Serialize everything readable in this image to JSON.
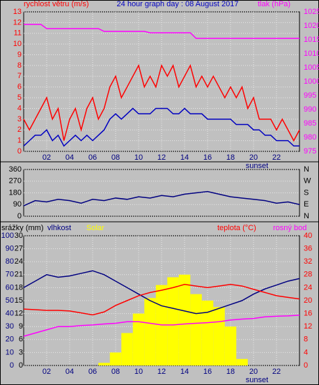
{
  "chart_data": [
    {
      "type": "line",
      "title": "24 hour graph day : 08 August 2017",
      "y_label": "rychlost větru (m/s)",
      "y2_label": "tlak (hPa)",
      "title_color": "#0000c0",
      "ytick_color": "#ff0000",
      "y2tick_color": "#ff00ff",
      "grid": true,
      "xlim": [
        0,
        24
      ],
      "xticks": [
        {
          "value": 2,
          "label": "02"
        },
        {
          "value": 4,
          "label": "04"
        },
        {
          "value": 6,
          "label": "06"
        },
        {
          "value": 8,
          "label": "08"
        },
        {
          "value": 10,
          "label": "10"
        },
        {
          "value": 12,
          "label": "12"
        },
        {
          "value": 14,
          "label": "14"
        },
        {
          "value": 16,
          "label": "16"
        },
        {
          "value": 18,
          "label": "18"
        },
        {
          "value": 20,
          "label": "20"
        },
        {
          "value": 22,
          "label": "22"
        }
      ],
      "annotation": {
        "text": "sunset",
        "x": 20.3
      },
      "ylim": [
        0,
        13
      ],
      "yticks": [
        0,
        1,
        2,
        3,
        4,
        5,
        6,
        7,
        8,
        9,
        10,
        11,
        12,
        13
      ],
      "y2lim": [
        975,
        1025
      ],
      "y2ticks": [
        975,
        980,
        985,
        990,
        995,
        1000,
        1005,
        1010,
        1015,
        1020,
        1025
      ],
      "x": [
        0,
        0.5,
        1,
        1.5,
        2,
        2.5,
        3,
        3.5,
        4,
        4.5,
        5,
        5.5,
        6,
        6.5,
        7,
        7.5,
        8,
        8.5,
        9,
        9.5,
        10,
        10.5,
        11,
        11.5,
        12,
        12.5,
        13,
        13.5,
        14,
        14.5,
        15,
        15.5,
        16,
        16.5,
        17,
        17.5,
        18,
        18.5,
        19,
        19.5,
        20,
        20.5,
        21,
        21.5,
        22,
        22.5,
        23,
        23.5,
        24
      ],
      "series": [
        {
          "color": "#ff0000",
          "values": [
            3,
            2,
            3,
            4,
            5,
            3,
            4,
            1,
            3,
            4,
            2,
            4,
            5,
            3,
            4,
            6,
            7,
            5,
            6,
            7,
            8,
            6,
            7,
            6,
            8,
            7,
            8,
            6,
            7,
            8,
            6,
            7,
            6,
            7,
            6,
            5,
            6,
            5,
            6,
            4,
            5,
            3,
            3,
            3,
            2,
            3,
            2,
            1,
            2
          ]
        },
        {
          "color": "#0000c0",
          "values": [
            0.5,
            1,
            1.5,
            1.5,
            2,
            1,
            1.5,
            0.5,
            1,
            1.5,
            1,
            1.5,
            1,
            1.5,
            2,
            3,
            3.5,
            3,
            3.5,
            4,
            3.5,
            3.5,
            3.5,
            4,
            4,
            4,
            3.5,
            3.5,
            4,
            3.5,
            3.5,
            3.5,
            3,
            3,
            3,
            3,
            3,
            2.5,
            2.5,
            2.5,
            2,
            2,
            1.5,
            1.5,
            1,
            1,
            1,
            0.5,
            0.5
          ]
        },
        {
          "color": "#ff00ff",
          "axis": "y2",
          "values": [
            1020.5,
            1020.5,
            1020.5,
            1020.5,
            1019,
            1019,
            1019,
            1019,
            1019,
            1019,
            1019,
            1019,
            1019,
            1019,
            1018,
            1018,
            1018,
            1018,
            1018,
            1018,
            1018,
            1018,
            1017.5,
            1017.5,
            1017.5,
            1017.5,
            1017.5,
            1017.5,
            1017.5,
            1017.5,
            1015.5,
            1015.5,
            1015.5,
            1015.5,
            1015.5,
            1015.5,
            1015.5,
            1015.5,
            1015.5,
            1015.5,
            1015.5,
            1015.5,
            1015.5,
            1015.5,
            1015.5,
            1015.5,
            1015.5,
            1015.5,
            1015.5
          ]
        }
      ]
    },
    {
      "type": "line",
      "ytick_color": "#000000",
      "y2tick_color": "#000000",
      "grid": true,
      "xlim": [
        0,
        24
      ],
      "ylim": [
        0,
        360
      ],
      "yticks": [
        0,
        90,
        180,
        270,
        360
      ],
      "y2lim": [
        0,
        360
      ],
      "y2ticks": [
        {
          "value": 0,
          "label": "N"
        },
        {
          "value": 90,
          "label": "E"
        },
        {
          "value": 180,
          "label": "S"
        },
        {
          "value": 270,
          "label": "W"
        },
        {
          "value": 360,
          "label": "N"
        }
      ],
      "x": [
        0,
        1,
        2,
        3,
        4,
        5,
        6,
        7,
        8,
        9,
        10,
        11,
        12,
        13,
        14,
        15,
        16,
        17,
        18,
        19,
        20,
        21,
        22,
        23,
        24
      ],
      "series": [
        {
          "color": "#000080",
          "values": [
            80,
            120,
            110,
            130,
            120,
            100,
            130,
            120,
            140,
            130,
            150,
            140,
            160,
            150,
            170,
            180,
            190,
            170,
            150,
            140,
            130,
            120,
            100,
            110,
            90
          ]
        }
      ]
    },
    {
      "type": "line",
      "y3_label": "srážky (mm)",
      "ytick_color": "#000080",
      "y3tick_color": "#000000",
      "y2tick_color": "#ff0000",
      "grid": true,
      "xlim": [
        0,
        24
      ],
      "xticks": [
        {
          "value": 2,
          "label": "02"
        },
        {
          "value": 4,
          "label": "04"
        },
        {
          "value": 6,
          "label": "06"
        },
        {
          "value": 8,
          "label": "08"
        },
        {
          "value": 10,
          "label": "10"
        },
        {
          "value": 12,
          "label": "12"
        },
        {
          "value": 14,
          "label": "14"
        },
        {
          "value": 16,
          "label": "16"
        },
        {
          "value": 18,
          "label": "18"
        },
        {
          "value": 20,
          "label": "20"
        },
        {
          "value": 22,
          "label": "22"
        }
      ],
      "annotation": {
        "text": "sunset",
        "x": 20.3
      },
      "ylim": [
        0,
        100
      ],
      "yticks": [
        0,
        10,
        20,
        30,
        40,
        50,
        60,
        70,
        80,
        90,
        100
      ],
      "y3lim": [
        0,
        30
      ],
      "y3ticks": [
        0,
        3,
        6,
        9,
        12,
        15,
        18,
        21,
        24,
        27,
        30
      ],
      "y2lim": [
        0,
        40
      ],
      "y2ticks": [
        0,
        4,
        8,
        12,
        16,
        20,
        24,
        28,
        32,
        36,
        40
      ],
      "x": [
        0,
        1,
        2,
        3,
        4,
        5,
        6,
        7,
        8,
        9,
        10,
        11,
        12,
        13,
        14,
        15,
        16,
        17,
        18,
        19,
        20,
        21,
        22,
        23,
        24
      ],
      "series": [
        {
          "name": "vlhkost",
          "color": "#000080",
          "values": [
            60,
            65,
            70,
            68,
            69,
            71,
            73,
            70,
            65,
            60,
            55,
            50,
            46,
            44,
            42,
            40,
            41,
            44,
            47,
            50,
            55,
            59,
            62,
            65,
            67
          ]
        },
        {
          "name": "Solar",
          "color": "#ffff00",
          "kind": "bars",
          "values": [
            0,
            0,
            0,
            0,
            0,
            0,
            0,
            2,
            10,
            25,
            40,
            52,
            62,
            68,
            70,
            55,
            50,
            45,
            30,
            5,
            0,
            0,
            0,
            0,
            0
          ]
        },
        {
          "name": "teplota (°C)",
          "color": "#ff0000",
          "axis": "y2",
          "values": [
            17.4,
            17.2,
            17,
            17,
            16.8,
            16.2,
            15.6,
            16.5,
            18.5,
            20,
            21.5,
            22.5,
            23.2,
            24,
            25,
            24.5,
            24,
            24.5,
            25,
            24.5,
            23.5,
            22.5,
            21.5,
            21,
            20.5
          ]
        },
        {
          "name": "rosný bod",
          "color": "#ff00ff",
          "axis": "y2",
          "values": [
            9,
            10,
            11,
            12,
            12,
            12.3,
            12.5,
            12.8,
            13,
            13.5,
            13.5,
            13,
            12.5,
            12.5,
            12.8,
            13,
            13.2,
            13.5,
            14,
            14.3,
            14.5,
            15,
            15.2,
            15.3,
            15.5
          ]
        }
      ]
    }
  ]
}
